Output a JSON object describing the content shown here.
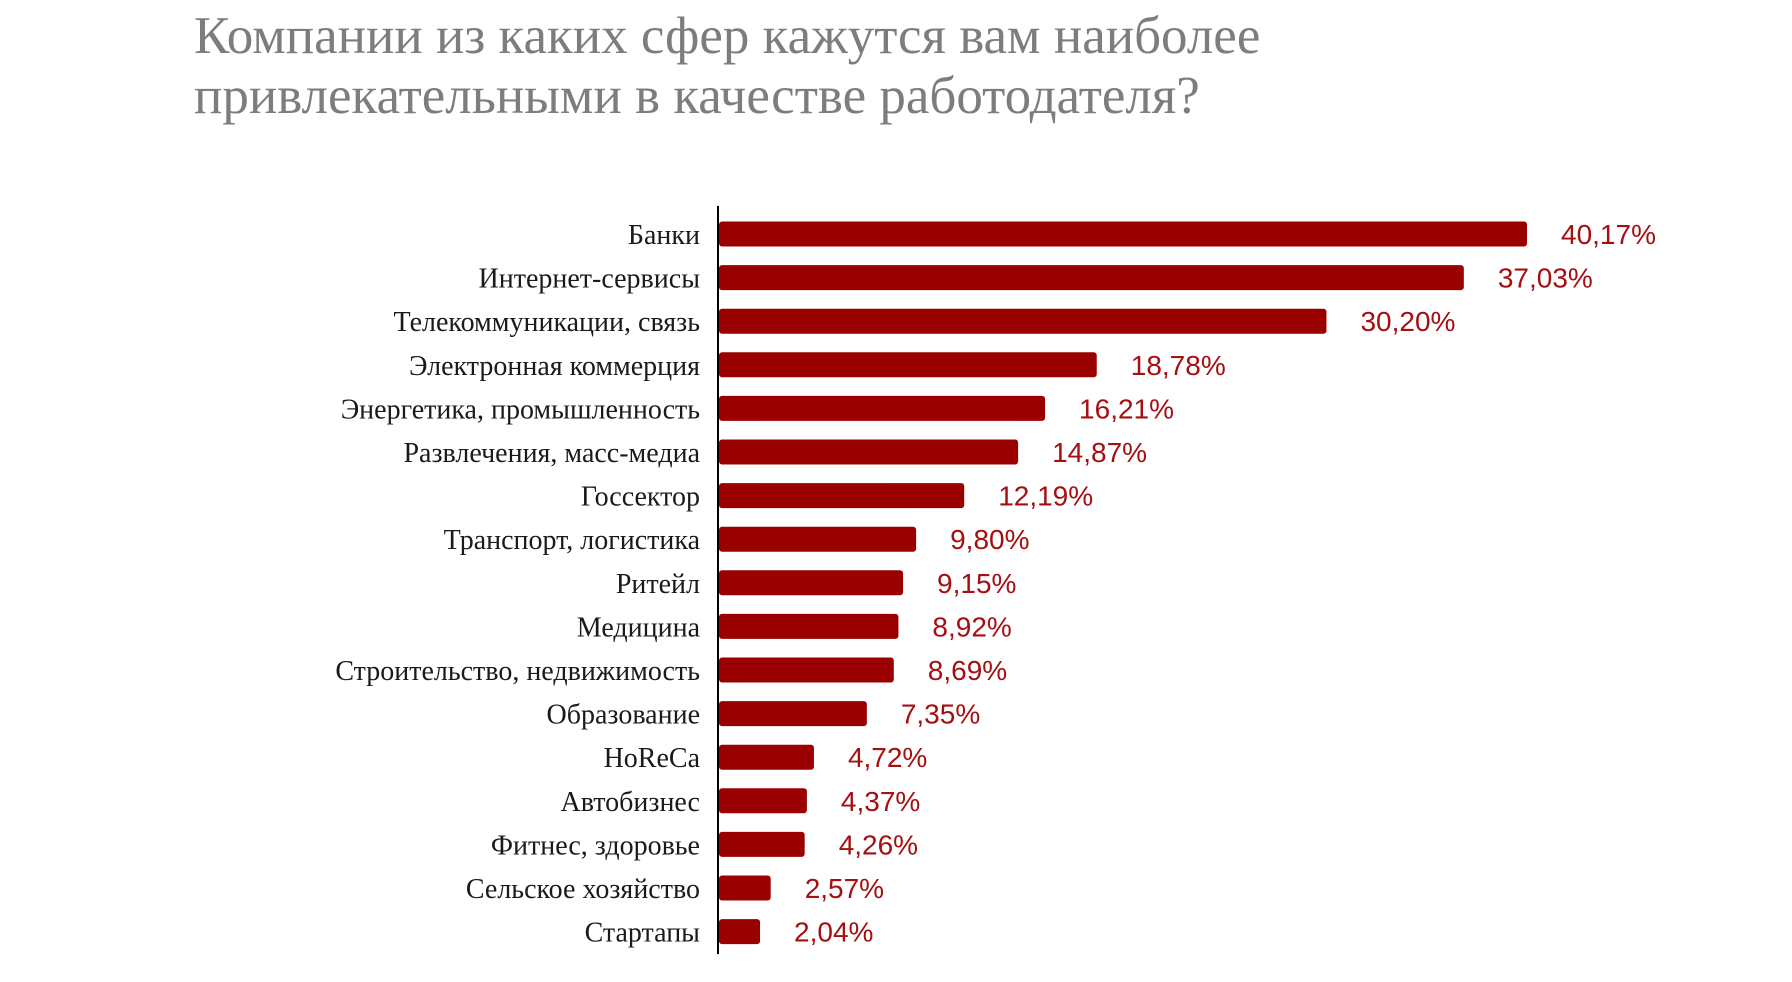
{
  "chart_data": {
    "type": "bar",
    "orientation": "horizontal",
    "title": "Компании из каких сфер кажутся вам наиболее привлекательными в качестве работодателя?",
    "categories": [
      "Банки",
      "Интернет-сервисы",
      "Телекоммуникации, связь",
      "Электронная коммерция",
      "Энергетика, промышленность",
      "Развлечения, масс-медиа",
      "Госсектор",
      "Транспорт, логистика",
      "Ритейл",
      "Медицина",
      "Строительство, недвижимость",
      "Образование",
      "HoReCa",
      "Автобизнес",
      "Фитнес, здоровье",
      "Сельское хозяйство",
      "Стартапы"
    ],
    "values": [
      40.17,
      37.03,
      30.2,
      18.78,
      16.21,
      14.87,
      12.19,
      9.8,
      9.15,
      8.92,
      8.69,
      7.35,
      4.72,
      4.37,
      4.26,
      2.57,
      2.04
    ],
    "value_labels": [
      "40,17%",
      "37,03%",
      "30,20%",
      "18,78%",
      "16,21%",
      "14,87%",
      "12,19%",
      "9,80%",
      "9,15%",
      "8,92%",
      "8,69%",
      "7,35%",
      "4,72%",
      "4,37%",
      "4,26%",
      "2,57%",
      "2,04%"
    ],
    "xlabel": "",
    "ylabel": "",
    "xlim": [
      0,
      40.17
    ],
    "grid": false,
    "legend": "none",
    "colors": {
      "bar": "#9b0000",
      "value_label": "#a50f12",
      "title": "#7d7d7d",
      "category_label": "#1a1a1a",
      "axis": "#000000"
    }
  }
}
